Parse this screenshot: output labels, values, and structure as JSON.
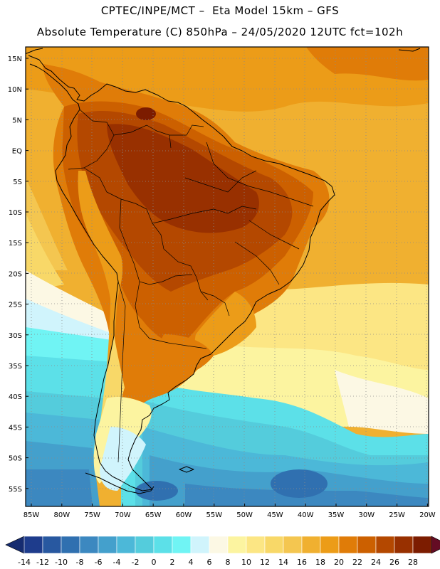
{
  "header": {
    "line1": "CPTEC/INPE/MCT –  Eta Model 15km – GFS",
    "line2": "Absolute Temperature (C) 850hPa – 24/05/2020 12UTC fct=102h"
  },
  "map": {
    "lat_labels": [
      "15N",
      "10N",
      "5N",
      "EQ",
      "5S",
      "10S",
      "15S",
      "20S",
      "25S",
      "30S",
      "35S",
      "40S",
      "45S",
      "50S",
      "55S"
    ],
    "lon_labels": [
      "85W",
      "80W",
      "75W",
      "70W",
      "65W",
      "60W",
      "55W",
      "50W",
      "45W",
      "40W",
      "35W",
      "30W",
      "25W",
      "20W"
    ]
  },
  "colorbar": {
    "labels": [
      "-14",
      "-12",
      "-10",
      "-8",
      "-6",
      "-4",
      "-2",
      "0",
      "2",
      "4",
      "6",
      "8",
      "10",
      "12",
      "14",
      "16",
      "18",
      "20",
      "22",
      "24",
      "26",
      "28"
    ],
    "colors": [
      "#1e3c8c",
      "#2858a0",
      "#3070b0",
      "#3c88c0",
      "#44a0cc",
      "#4cb8d8",
      "#54ccdc",
      "#5ce0e8",
      "#70f4f4",
      "#d0f4fc",
      "#fcf8e4",
      "#fcf4a0",
      "#fce684",
      "#f8d868",
      "#f4c650",
      "#f0b030",
      "#ec9c18",
      "#e07c08",
      "#cc6000",
      "#b44800",
      "#983000",
      "#7c1c00"
    ],
    "under_color": "#162c70",
    "over_color": "#640c24"
  }
}
